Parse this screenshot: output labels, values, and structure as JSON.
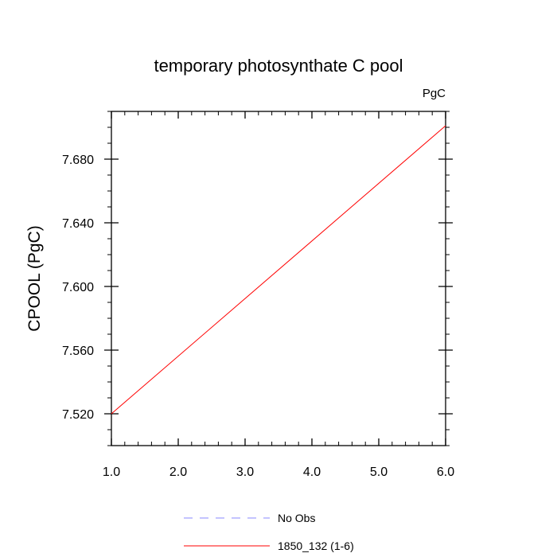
{
  "chart_data": {
    "type": "line",
    "title": "temporary photosynthate C pool",
    "units": "PgC",
    "xlabel": "",
    "ylabel": "CPOOL  (PgC)",
    "xlim": [
      1.0,
      6.0
    ],
    "ylim": [
      7.5,
      7.71
    ],
    "xticks": [
      1.0,
      2.0,
      3.0,
      4.0,
      5.0,
      6.0
    ],
    "xtick_labels": [
      "1.0",
      "2.0",
      "3.0",
      "4.0",
      "5.0",
      "6.0"
    ],
    "yticks": [
      7.52,
      7.56,
      7.6,
      7.64,
      7.68
    ],
    "ytick_labels": [
      "7.520",
      "7.560",
      "7.600",
      "7.640",
      "7.680"
    ],
    "grid": false,
    "legend_placement": "bottom",
    "series": [
      {
        "name": "No Obs",
        "color": "#8888ff",
        "dash": "dashed",
        "x": [],
        "y": []
      },
      {
        "name": "1850_132 (1-6)",
        "color": "#ff0000",
        "dash": "solid",
        "x": [
          1.0,
          6.0
        ],
        "y": [
          7.52,
          7.701
        ]
      }
    ]
  }
}
